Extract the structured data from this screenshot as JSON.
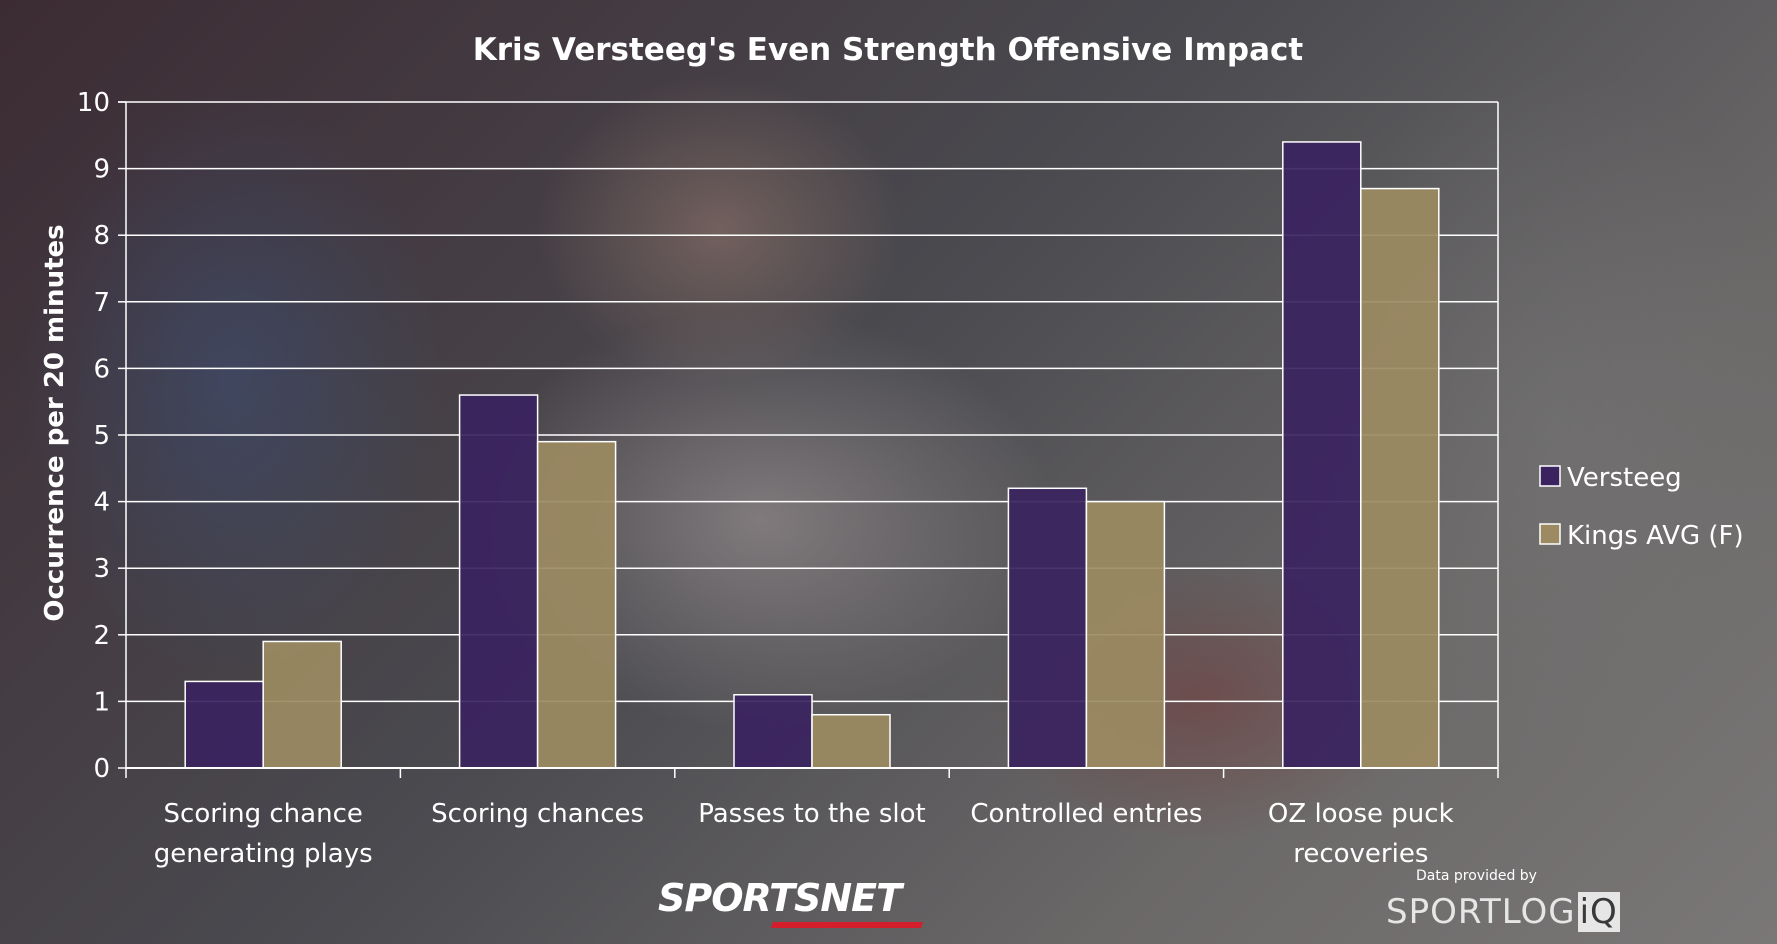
{
  "chart_data": {
    "type": "bar",
    "title": "Kris Versteeg's Even Strength Offensive Impact",
    "ylabel": "Occurrence per 20 minutes",
    "ylim": [
      0,
      10
    ],
    "yticks": [
      "0",
      "1",
      "2",
      "3",
      "4",
      "5",
      "6",
      "7",
      "8",
      "9",
      "10"
    ],
    "grid": true,
    "legend_position": "right",
    "categories": [
      [
        "Scoring chance",
        "generating plays"
      ],
      [
        "Scoring chances"
      ],
      [
        "Passes to the slot"
      ],
      [
        "Controlled entries"
      ],
      [
        "OZ loose puck",
        "recoveries"
      ]
    ],
    "series": [
      {
        "name": "Versteeg",
        "color": "#3b2360",
        "values": [
          1.3,
          5.6,
          1.1,
          4.2,
          9.4
        ]
      },
      {
        "name": "Kings AVG (F)",
        "color": "#9c8b62",
        "values": [
          1.9,
          4.9,
          0.8,
          4.0,
          8.7
        ]
      }
    ]
  },
  "branding": {
    "logo": "SPORTSNET",
    "credit_label": "Data provided by",
    "credit_logo_main": "SPORTLOG",
    "credit_logo_suffix": "iQ"
  }
}
